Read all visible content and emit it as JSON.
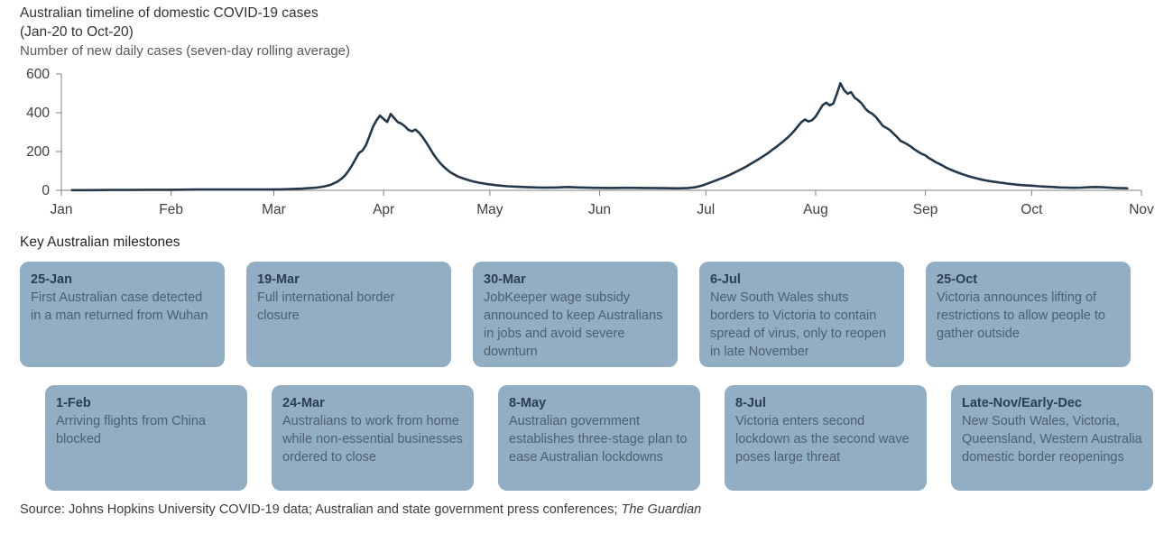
{
  "header": {
    "title_line1": "Australian timeline of domestic COVID-19 cases",
    "title_line2": "(Jan-20 to Oct-20)",
    "subtitle": "Number of new daily cases (seven-day rolling average)"
  },
  "chart_data": {
    "type": "line",
    "title": "Australian timeline of domestic COVID-19 cases (Jan-20 to Oct-20)",
    "xlabel": "",
    "ylabel": "Number of new daily cases (seven-day rolling average)",
    "ylim": [
      0,
      600
    ],
    "y_ticks": [
      0,
      200,
      400,
      600
    ],
    "xlim": [
      0,
      305
    ],
    "x_unit": "day-of-year-2020",
    "x_ticks": [
      {
        "label": "Jan",
        "day": 0
      },
      {
        "label": "Feb",
        "day": 31
      },
      {
        "label": "Mar",
        "day": 60
      },
      {
        "label": "Apr",
        "day": 91
      },
      {
        "label": "May",
        "day": 121
      },
      {
        "label": "Jun",
        "day": 152
      },
      {
        "label": "Jul",
        "day": 182
      },
      {
        "label": "Aug",
        "day": 213
      },
      {
        "label": "Sep",
        "day": 244
      },
      {
        "label": "Oct",
        "day": 274
      },
      {
        "label": "Nov",
        "day": 305
      }
    ],
    "grid": false,
    "legend": "none",
    "line_color": "#24384a",
    "axis_color": "#808080",
    "tick_label_color": "#3f3f3f",
    "series": [
      {
        "name": "New daily cases (seven-day rolling average)",
        "points": [
          [
            3,
            1
          ],
          [
            8,
            1
          ],
          [
            14,
            2
          ],
          [
            20,
            2
          ],
          [
            25,
            3
          ],
          [
            31,
            3
          ],
          [
            38,
            4
          ],
          [
            45,
            4
          ],
          [
            52,
            4
          ],
          [
            58,
            4
          ],
          [
            62,
            5
          ],
          [
            65,
            7
          ],
          [
            68,
            9
          ],
          [
            70,
            11
          ],
          [
            72,
            14
          ],
          [
            74,
            19
          ],
          [
            76,
            28
          ],
          [
            78,
            45
          ],
          [
            79,
            58
          ],
          [
            80,
            75
          ],
          [
            81,
            98
          ],
          [
            82,
            126
          ],
          [
            83,
            158
          ],
          [
            84,
            192
          ],
          [
            85,
            204
          ],
          [
            86,
            232
          ],
          [
            87,
            278
          ],
          [
            88,
            328
          ],
          [
            89,
            362
          ],
          [
            90,
            385
          ],
          [
            91,
            368
          ],
          [
            92,
            352
          ],
          [
            93,
            394
          ],
          [
            94,
            372
          ],
          [
            95,
            352
          ],
          [
            96,
            344
          ],
          [
            97,
            330
          ],
          [
            98,
            312
          ],
          [
            99,
            304
          ],
          [
            100,
            313
          ],
          [
            101,
            297
          ],
          [
            102,
            275
          ],
          [
            103,
            248
          ],
          [
            104,
            218
          ],
          [
            105,
            188
          ],
          [
            106,
            163
          ],
          [
            107,
            140
          ],
          [
            108,
            121
          ],
          [
            109,
            105
          ],
          [
            110,
            91
          ],
          [
            112,
            71
          ],
          [
            114,
            58
          ],
          [
            116,
            47
          ],
          [
            118,
            39
          ],
          [
            120,
            33
          ],
          [
            123,
            26
          ],
          [
            126,
            21
          ],
          [
            129,
            18
          ],
          [
            132,
            16
          ],
          [
            136,
            14
          ],
          [
            140,
            15
          ],
          [
            143,
            17
          ],
          [
            146,
            15
          ],
          [
            150,
            13
          ],
          [
            155,
            12
          ],
          [
            160,
            13
          ],
          [
            165,
            12
          ],
          [
            170,
            11
          ],
          [
            174,
            10
          ],
          [
            177,
            12
          ],
          [
            179,
            16
          ],
          [
            181,
            25
          ],
          [
            183,
            38
          ],
          [
            185,
            52
          ],
          [
            187,
            66
          ],
          [
            189,
            82
          ],
          [
            191,
            100
          ],
          [
            193,
            118
          ],
          [
            195,
            140
          ],
          [
            197,
            162
          ],
          [
            199,
            185
          ],
          [
            200,
            198
          ],
          [
            201,
            212
          ],
          [
            202,
            225
          ],
          [
            203,
            240
          ],
          [
            204,
            255
          ],
          [
            205,
            270
          ],
          [
            206,
            288
          ],
          [
            207,
            308
          ],
          [
            208,
            330
          ],
          [
            209,
            352
          ],
          [
            210,
            365
          ],
          [
            211,
            355
          ],
          [
            212,
            362
          ],
          [
            213,
            380
          ],
          [
            214,
            410
          ],
          [
            215,
            440
          ],
          [
            216,
            452
          ],
          [
            217,
            438
          ],
          [
            218,
            448
          ],
          [
            219,
            498
          ],
          [
            220,
            552
          ],
          [
            221,
            518
          ],
          [
            222,
            498
          ],
          [
            223,
            506
          ],
          [
            224,
            478
          ],
          [
            225,
            465
          ],
          [
            226,
            448
          ],
          [
            227,
            422
          ],
          [
            228,
            405
          ],
          [
            229,
            395
          ],
          [
            230,
            378
          ],
          [
            231,
            355
          ],
          [
            232,
            332
          ],
          [
            233,
            322
          ],
          [
            234,
            310
          ],
          [
            235,
            292
          ],
          [
            236,
            275
          ],
          [
            237,
            255
          ],
          [
            238,
            246
          ],
          [
            239,
            236
          ],
          [
            240,
            224
          ],
          [
            241,
            210
          ],
          [
            242,
            198
          ],
          [
            243,
            188
          ],
          [
            244,
            180
          ],
          [
            245,
            166
          ],
          [
            246,
            156
          ],
          [
            247,
            144
          ],
          [
            248,
            136
          ],
          [
            249,
            126
          ],
          [
            250,
            116
          ],
          [
            251,
            108
          ],
          [
            252,
            100
          ],
          [
            253,
            93
          ],
          [
            254,
            86
          ],
          [
            255,
            80
          ],
          [
            256,
            74
          ],
          [
            257,
            69
          ],
          [
            258,
            64
          ],
          [
            259,
            59
          ],
          [
            260,
            55
          ],
          [
            261,
            51
          ],
          [
            262,
            48
          ],
          [
            263,
            45
          ],
          [
            264,
            43
          ],
          [
            265,
            40
          ],
          [
            266,
            38
          ],
          [
            267,
            35
          ],
          [
            268,
            33
          ],
          [
            269,
            31
          ],
          [
            270,
            29
          ],
          [
            272,
            26
          ],
          [
            274,
            24
          ],
          [
            276,
            21
          ],
          [
            278,
            19
          ],
          [
            280,
            17
          ],
          [
            282,
            15
          ],
          [
            284,
            14
          ],
          [
            286,
            13
          ],
          [
            288,
            14
          ],
          [
            290,
            16
          ],
          [
            292,
            17
          ],
          [
            294,
            16
          ],
          [
            296,
            14
          ],
          [
            298,
            12
          ],
          [
            300,
            11
          ],
          [
            301,
            10
          ]
        ]
      }
    ]
  },
  "milestones": {
    "heading": "Key Australian milestones",
    "card_bg": "#92aec4",
    "date_color": "#2c3e4e",
    "text_color": "#4e5e6b",
    "rows": [
      [
        {
          "date": "25-Jan",
          "text": "First Australian case detected in a man returned from Wuhan"
        },
        {
          "date": "19-Mar",
          "text": "Full international border closure"
        },
        {
          "date": "30-Mar",
          "text": "JobKeeper wage subsidy announced to keep Australians in jobs and avoid severe downturn"
        },
        {
          "date": "6-Jul",
          "text": "New South Wales shuts borders to Victoria to contain spread of virus, only to reopen in late November"
        },
        {
          "date": "25-Oct",
          "text": "Victoria announces lifting of restrictions to allow people to gather outside"
        }
      ],
      [
        {
          "date": "1-Feb",
          "text": "Arriving flights from China blocked"
        },
        {
          "date": "24-Mar",
          "text": "Australians to work from home while non-essential businesses ordered to close"
        },
        {
          "date": "8-May",
          "text": "Australian government establishes three-stage plan to ease Australian lockdowns"
        },
        {
          "date": "8-Jul",
          "text": "Victoria enters second lockdown as the second wave poses large threat"
        },
        {
          "date": "Late-Nov/Early-Dec",
          "text": "New South Wales, Victoria, Queensland, Western Australia domestic border reopenings"
        }
      ]
    ]
  },
  "source": {
    "prefix": "Source: Johns Hopkins University COVID-19 data; Australian and state government press conferences; ",
    "italic": "The Guardian"
  }
}
